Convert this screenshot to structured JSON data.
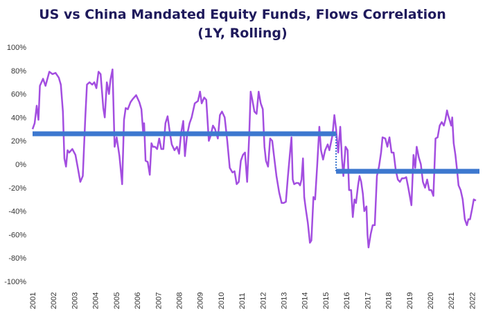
{
  "chart_data": {
    "type": "line",
    "title": "US vs China Mandated Equity Funds, Flows Correlation",
    "subtitle": "(1Y, Rolling)",
    "ylim": [
      -100,
      100
    ],
    "xlim": [
      2001,
      2022.35
    ],
    "y_ticks": [
      "100%",
      "80%",
      "60%",
      "40%",
      "20%",
      "0%",
      "-20%",
      "-40%",
      "-60%",
      "-80%",
      "-100%"
    ],
    "y_tick_values": [
      100,
      80,
      60,
      40,
      20,
      0,
      -20,
      -40,
      -60,
      -80,
      -100
    ],
    "x_ticks": [
      "2001",
      "2002",
      "2003",
      "2004",
      "2005",
      "2006",
      "2007",
      "2008",
      "2009",
      "2010",
      "2011",
      "2012",
      "2013",
      "2014",
      "2015",
      "2016",
      "2017",
      "2018",
      "2019",
      "2020",
      "2021",
      "2022"
    ],
    "x_tick_values": [
      2001,
      2002,
      2003,
      2004,
      2005,
      2006,
      2007,
      2008,
      2009,
      2010,
      2011,
      2012,
      2013,
      2014,
      2015,
      2016,
      2017,
      2018,
      2019,
      2020,
      2021,
      2022
    ],
    "grid": false,
    "colors": {
      "series": "#a34ee0",
      "mean": "#3d78cf",
      "connector": "#3d78cf",
      "title": "#1f1a5c"
    },
    "series": [
      {
        "values": [
          [
            2001.0,
            30
          ],
          [
            2001.1,
            35
          ],
          [
            2001.2,
            50
          ],
          [
            2001.28,
            38
          ],
          [
            2001.35,
            67
          ],
          [
            2001.5,
            73
          ],
          [
            2001.62,
            67
          ],
          [
            2001.8,
            79
          ],
          [
            2001.95,
            77
          ],
          [
            2002.1,
            78
          ],
          [
            2002.25,
            74
          ],
          [
            2002.35,
            68
          ],
          [
            2002.45,
            45
          ],
          [
            2002.52,
            5
          ],
          [
            2002.6,
            -2
          ],
          [
            2002.67,
            12
          ],
          [
            2002.75,
            10
          ],
          [
            2002.9,
            13
          ],
          [
            2003.05,
            8
          ],
          [
            2003.15,
            -2
          ],
          [
            2003.28,
            -15
          ],
          [
            2003.4,
            -10
          ],
          [
            2003.52,
            40
          ],
          [
            2003.6,
            68
          ],
          [
            2003.72,
            70
          ],
          [
            2003.85,
            68
          ],
          [
            2003.95,
            70
          ],
          [
            2004.05,
            65
          ],
          [
            2004.15,
            79
          ],
          [
            2004.25,
            77
          ],
          [
            2004.38,
            48
          ],
          [
            2004.45,
            40
          ],
          [
            2004.55,
            70
          ],
          [
            2004.65,
            60
          ],
          [
            2004.72,
            72
          ],
          [
            2004.82,
            81
          ],
          [
            2004.92,
            15
          ],
          [
            2005.02,
            23
          ],
          [
            2005.15,
            7
          ],
          [
            2005.28,
            -17
          ],
          [
            2005.37,
            38
          ],
          [
            2005.45,
            48
          ],
          [
            2005.55,
            47
          ],
          [
            2005.68,
            53
          ],
          [
            2005.8,
            56
          ],
          [
            2005.95,
            59
          ],
          [
            2006.1,
            53
          ],
          [
            2006.2,
            47
          ],
          [
            2006.28,
            28
          ],
          [
            2006.33,
            35
          ],
          [
            2006.4,
            3
          ],
          [
            2006.5,
            2
          ],
          [
            2006.6,
            -9
          ],
          [
            2006.68,
            18
          ],
          [
            2006.75,
            15
          ],
          [
            2006.85,
            15
          ],
          [
            2006.95,
            13
          ],
          [
            2007.05,
            22
          ],
          [
            2007.15,
            13
          ],
          [
            2007.25,
            13
          ],
          [
            2007.35,
            35
          ],
          [
            2007.45,
            41
          ],
          [
            2007.55,
            28
          ],
          [
            2007.65,
            17
          ],
          [
            2007.78,
            12
          ],
          [
            2007.9,
            15
          ],
          [
            2008.0,
            9
          ],
          [
            2008.1,
            27
          ],
          [
            2008.2,
            37
          ],
          [
            2008.28,
            7
          ],
          [
            2008.38,
            25
          ],
          [
            2008.5,
            35
          ],
          [
            2008.6,
            40
          ],
          [
            2008.75,
            52
          ],
          [
            2008.9,
            54
          ],
          [
            2009.0,
            62
          ],
          [
            2009.08,
            52
          ],
          [
            2009.2,
            57
          ],
          [
            2009.3,
            55
          ],
          [
            2009.42,
            20
          ],
          [
            2009.5,
            24
          ],
          [
            2009.62,
            33
          ],
          [
            2009.72,
            30
          ],
          [
            2009.85,
            22
          ],
          [
            2009.95,
            42
          ],
          [
            2010.05,
            45
          ],
          [
            2010.18,
            40
          ],
          [
            2010.3,
            20
          ],
          [
            2010.42,
            -3
          ],
          [
            2010.55,
            -7
          ],
          [
            2010.65,
            -6
          ],
          [
            2010.75,
            -17
          ],
          [
            2010.85,
            -15
          ],
          [
            2010.95,
            3
          ],
          [
            2011.05,
            8
          ],
          [
            2011.15,
            10
          ],
          [
            2011.25,
            -15
          ],
          [
            2011.35,
            25
          ],
          [
            2011.42,
            62
          ],
          [
            2011.5,
            55
          ],
          [
            2011.6,
            45
          ],
          [
            2011.7,
            43
          ],
          [
            2011.8,
            62
          ],
          [
            2011.9,
            52
          ],
          [
            2012.0,
            47
          ],
          [
            2012.08,
            15
          ],
          [
            2012.15,
            3
          ],
          [
            2012.25,
            -2
          ],
          [
            2012.35,
            22
          ],
          [
            2012.45,
            20
          ],
          [
            2012.55,
            5
          ],
          [
            2012.65,
            -10
          ],
          [
            2012.78,
            -24
          ],
          [
            2012.9,
            -33
          ],
          [
            2013.0,
            -33
          ],
          [
            2013.1,
            -32
          ],
          [
            2013.2,
            -10
          ],
          [
            2013.3,
            10
          ],
          [
            2013.37,
            23
          ],
          [
            2013.43,
            -13
          ],
          [
            2013.5,
            -17
          ],
          [
            2013.6,
            -16
          ],
          [
            2013.7,
            -16
          ],
          [
            2013.78,
            -18
          ],
          [
            2013.85,
            -13
          ],
          [
            2013.92,
            5
          ],
          [
            2013.98,
            -28
          ],
          [
            2014.05,
            -38
          ],
          [
            2014.15,
            -50
          ],
          [
            2014.25,
            -67
          ],
          [
            2014.32,
            -65
          ],
          [
            2014.42,
            -28
          ],
          [
            2014.5,
            -30
          ],
          [
            2014.6,
            0
          ],
          [
            2014.7,
            32
          ],
          [
            2014.78,
            12
          ],
          [
            2014.88,
            4
          ],
          [
            2014.98,
            12
          ],
          [
            2015.1,
            17
          ],
          [
            2015.18,
            12
          ],
          [
            2015.25,
            18
          ],
          [
            2015.33,
            25
          ],
          [
            2015.42,
            42
          ],
          [
            2015.5,
            30
          ],
          [
            2015.6,
            10
          ],
          [
            2015.7,
            32
          ],
          [
            2015.78,
            5
          ],
          [
            2015.85,
            -10
          ],
          [
            2015.95,
            15
          ],
          [
            2016.05,
            12
          ],
          [
            2016.12,
            -22
          ],
          [
            2016.22,
            -22
          ],
          [
            2016.3,
            -45
          ],
          [
            2016.38,
            -30
          ],
          [
            2016.45,
            -33
          ],
          [
            2016.55,
            -18
          ],
          [
            2016.62,
            -10
          ],
          [
            2016.7,
            -15
          ],
          [
            2016.78,
            -25
          ],
          [
            2016.85,
            -40
          ],
          [
            2016.95,
            -36
          ],
          [
            2017.0,
            -60
          ],
          [
            2017.05,
            -71
          ],
          [
            2017.15,
            -60
          ],
          [
            2017.25,
            -52
          ],
          [
            2017.35,
            -52
          ],
          [
            2017.45,
            -10
          ],
          [
            2017.55,
            -2
          ],
          [
            2017.65,
            10
          ],
          [
            2017.72,
            23
          ],
          [
            2017.85,
            22
          ],
          [
            2017.95,
            15
          ],
          [
            2018.05,
            23
          ],
          [
            2018.15,
            10
          ],
          [
            2018.25,
            10
          ],
          [
            2018.35,
            -5
          ],
          [
            2018.45,
            -13
          ],
          [
            2018.55,
            -15
          ],
          [
            2018.65,
            -12
          ],
          [
            2018.75,
            -12
          ],
          [
            2018.85,
            -11
          ],
          [
            2018.95,
            -20
          ],
          [
            2019.02,
            -27
          ],
          [
            2019.1,
            -35
          ],
          [
            2019.2,
            8
          ],
          [
            2019.28,
            -3
          ],
          [
            2019.35,
            15
          ],
          [
            2019.45,
            6
          ],
          [
            2019.55,
            0
          ],
          [
            2019.65,
            -15
          ],
          [
            2019.75,
            -20
          ],
          [
            2019.85,
            -13
          ],
          [
            2019.95,
            -22
          ],
          [
            2020.05,
            -22
          ],
          [
            2020.15,
            -27
          ],
          [
            2020.25,
            22
          ],
          [
            2020.35,
            23
          ],
          [
            2020.45,
            33
          ],
          [
            2020.55,
            36
          ],
          [
            2020.65,
            33
          ],
          [
            2020.72,
            38
          ],
          [
            2020.8,
            46
          ],
          [
            2020.85,
            42
          ],
          [
            2020.92,
            38
          ],
          [
            2021.0,
            33
          ],
          [
            2021.05,
            40
          ],
          [
            2021.12,
            18
          ],
          [
            2021.2,
            8
          ],
          [
            2021.28,
            -5
          ],
          [
            2021.35,
            -18
          ],
          [
            2021.45,
            -22
          ],
          [
            2021.55,
            -30
          ],
          [
            2021.65,
            -47
          ],
          [
            2021.75,
            -52
          ],
          [
            2021.82,
            -47
          ],
          [
            2021.9,
            -47
          ],
          [
            2022.0,
            -38
          ],
          [
            2022.08,
            -30
          ],
          [
            2022.18,
            -31
          ]
        ]
      }
    ],
    "mean_segments": [
      {
        "x_start": 2001.0,
        "x_end": 2015.5,
        "y": 26
      },
      {
        "x_start": 2015.5,
        "x_end": 2022.35,
        "y": -6
      }
    ]
  }
}
